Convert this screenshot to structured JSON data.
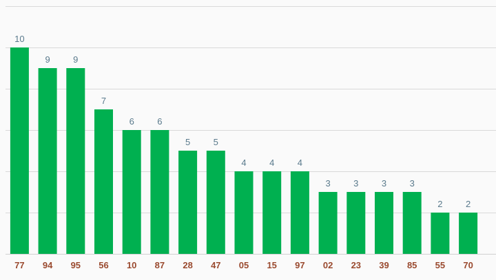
{
  "chart_data": {
    "type": "bar",
    "categories": [
      "77",
      "94",
      "95",
      "56",
      "10",
      "87",
      "28",
      "47",
      "05",
      "15",
      "97",
      "02",
      "23",
      "39",
      "85",
      "55",
      "70"
    ],
    "values": [
      10,
      9,
      9,
      7,
      6,
      6,
      5,
      5,
      4,
      4,
      4,
      3,
      3,
      3,
      3,
      2,
      2
    ],
    "title": "",
    "xlabel": "",
    "ylabel": "",
    "ylim": [
      0,
      12
    ],
    "grid": true,
    "data_labels": true,
    "legend": "none",
    "colors": {
      "bar": "#00b050",
      "value_label": "#5a7a8c",
      "category_label": "#9a4a2f",
      "grid": "#d9d9d9",
      "background": "#fafafa"
    }
  }
}
